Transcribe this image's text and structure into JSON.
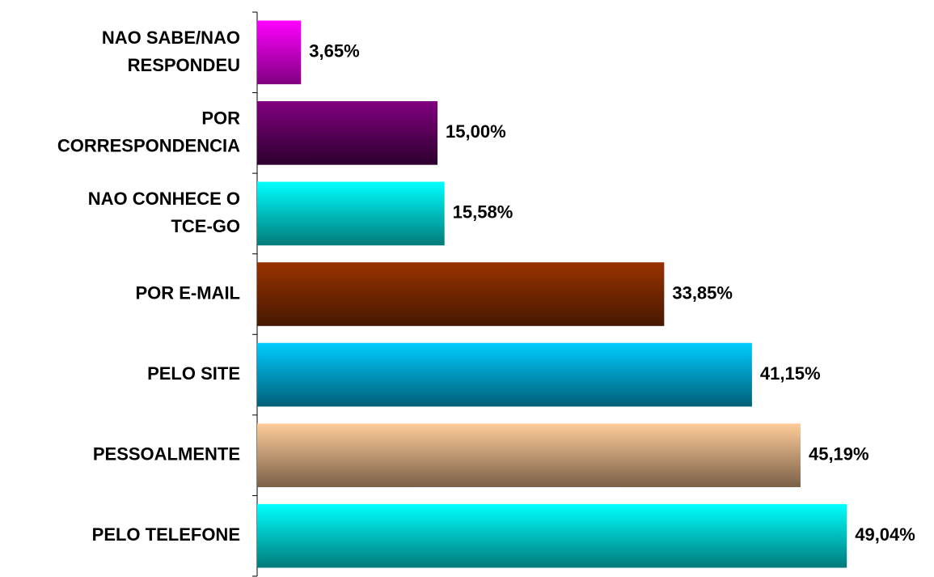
{
  "chart_data": {
    "type": "hbar",
    "categories": [
      "NAO SABE/NAO\nRESPONDEU",
      "POR\nCORRESPONDENCIA",
      "NAO CONHECE O\nTCE-GO",
      "POR E-MAIL",
      "PELO SITE",
      "PESSOALMENTE",
      "PELO TELEFONE"
    ],
    "values": [
      3.65,
      15.0,
      15.58,
      33.85,
      41.15,
      45.19,
      49.04
    ],
    "value_labels": [
      "3,65%",
      "15,00%",
      "15,58%",
      "33,85%",
      "41,15%",
      "45,19%",
      "49,04%"
    ],
    "colors": [
      [
        "#ff00ff",
        "#800080"
      ],
      [
        "#800080",
        "#2e002e"
      ],
      [
        "#00ffff",
        "#007a7a"
      ],
      [
        "#993300",
        "#461800"
      ],
      [
        "#00ccff",
        "#005f78"
      ],
      [
        "#ffcc99",
        "#7a6048"
      ],
      [
        "#00ffff",
        "#007a7a"
      ]
    ],
    "xlim": [
      0,
      50
    ]
  }
}
